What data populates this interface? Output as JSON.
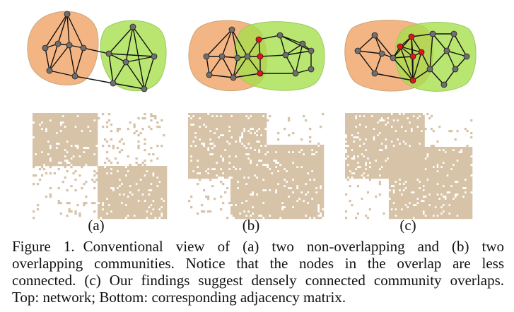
{
  "panels": [
    {
      "id": "a",
      "label": "(a)",
      "overlap": false,
      "overlap_density": "none"
    },
    {
      "id": "b",
      "label": "(b)",
      "overlap": true,
      "overlap_density": "sparse"
    },
    {
      "id": "c",
      "label": "(c)",
      "overlap": true,
      "overlap_density": "dense"
    }
  ],
  "colors": {
    "community_left": "#f2a86e",
    "community_right": "#a8df4e",
    "community_left_edge": "#c9a57d",
    "community_right_edge": "#9acb61",
    "node": "#6f6f6f",
    "overlap_node": "#e3131b",
    "edge": "#111111",
    "matrix_cell": "#d7c3a8"
  },
  "caption": {
    "lead": "Figure 1.",
    "lines": [
      "Conventional view of (a) two non-overlapping and (b) two",
      "overlapping communities. Notice that the nodes in the overlap are less",
      "connected. (c) Our findings suggest densely connected community overlaps.",
      "Top: network; Bottom: corresponding adjacency matrix."
    ]
  }
}
